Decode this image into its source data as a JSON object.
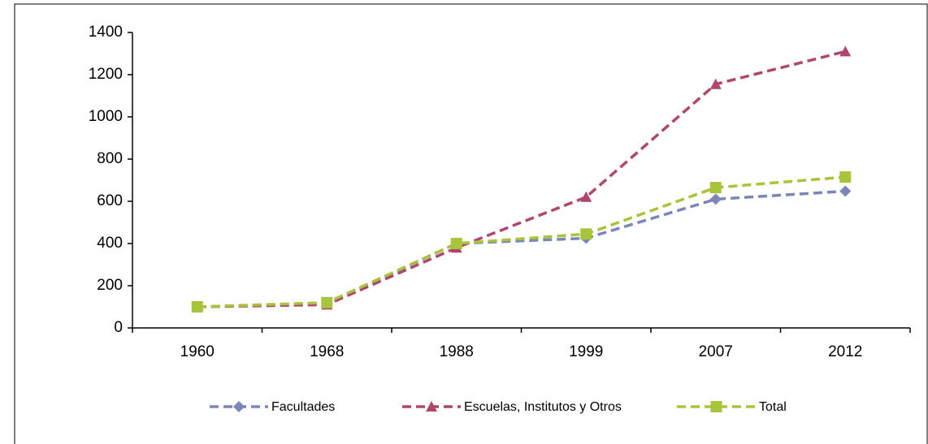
{
  "chart_data": {
    "type": "line",
    "categories": [
      "1960",
      "1968",
      "1988",
      "1999",
      "2007",
      "2012"
    ],
    "series": [
      {
        "name": "Facultades",
        "color": "#7b86b8",
        "marker": "diamond",
        "values": [
          100,
          115,
          400,
          425,
          610,
          648
        ]
      },
      {
        "name": "Escuelas, Institutos y Otros",
        "color": "#b0466e",
        "marker": "triangle",
        "values": [
          100,
          110,
          380,
          620,
          1155,
          1310
        ]
      },
      {
        "name": "Total",
        "color": "#a8c43a",
        "marker": "square",
        "values": [
          100,
          120,
          400,
          445,
          665,
          715
        ]
      }
    ],
    "ylim": [
      0,
      1400
    ],
    "yticks": [
      0,
      200,
      400,
      600,
      800,
      1000,
      1200,
      1400
    ],
    "grid": false,
    "legend": "bottom"
  }
}
